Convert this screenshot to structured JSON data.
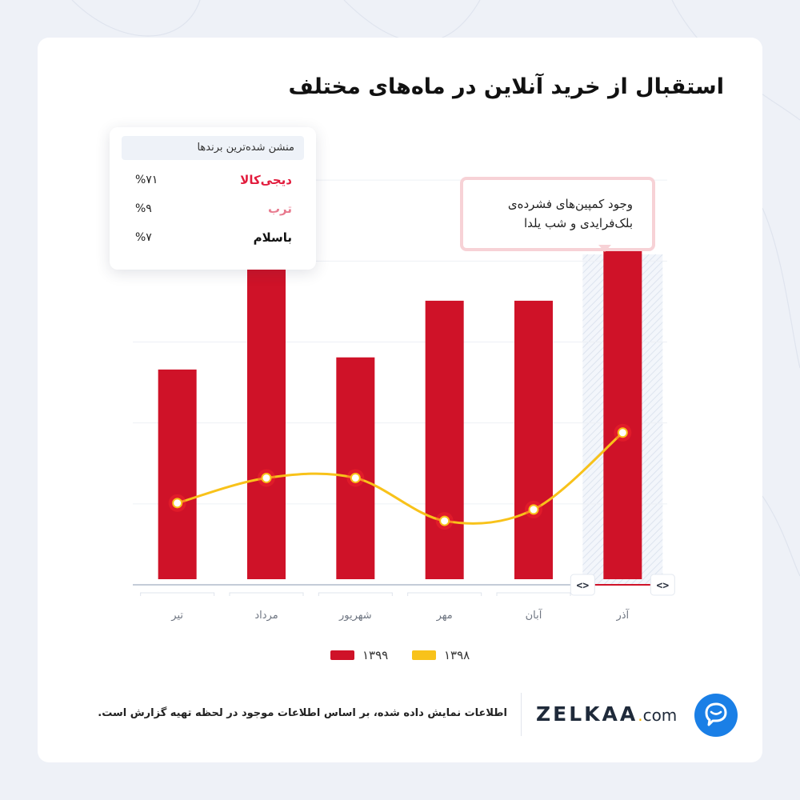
{
  "title": "استقبال از خرید آنلاین در ماه‌های مختلف",
  "brand_box": {
    "header": "منشن شده‌ترین برندها",
    "items": [
      {
        "name": "دیجی‌کالا",
        "percent": "%۷۱",
        "color": "#e21b3c"
      },
      {
        "name": "ترب",
        "percent": "%۹",
        "color": "#e87a8e"
      },
      {
        "name": "باسلام",
        "percent": "%۷",
        "color": "#111111"
      }
    ]
  },
  "callout": {
    "text": "وجود کمپین‌های فشرده‌ی بلک‌فرایدی و شب یلدا"
  },
  "chart_data": {
    "type": "bar",
    "categories": [
      "تیر",
      "مرداد",
      "شهریور",
      "مهر",
      "آبان",
      "آذر"
    ],
    "series": [
      {
        "name": "۱۳۹۹",
        "kind": "bar",
        "color": "#cf1228",
        "values": [
          26.6,
          42.9,
          28.1,
          35.1,
          35.1,
          46.1
        ]
      },
      {
        "name": "۱۳۹۸",
        "kind": "line",
        "color": "#f8c21a",
        "values": [
          10.1,
          13.2,
          13.2,
          7.9,
          9.3,
          18.8
        ]
      }
    ],
    "ylim": [
      0,
      60
    ],
    "gridlines": [
      10,
      20,
      30,
      40,
      50
    ],
    "highlight_category": "آذر",
    "grid": true,
    "legend_position": "bottom-center"
  },
  "scroll_control": {
    "left_icon": "code-brackets-icon",
    "right_icon": "code-brackets-icon",
    "glyph": "<>"
  },
  "footer": {
    "note": "اطلاعات نمایش داده شده، بر اساس اطلاعات موجود در لحظه تهیه گزارش است.",
    "logo_text": "ZELKAA",
    "logo_dot": ".",
    "logo_suffix": "com",
    "logo_icon": "chat-bubble-icon"
  },
  "colors": {
    "accent_red": "#cf1228",
    "accent_yellow": "#f8c21a",
    "logo_blue": "#1a7fe6",
    "background": "#eef1f7"
  }
}
